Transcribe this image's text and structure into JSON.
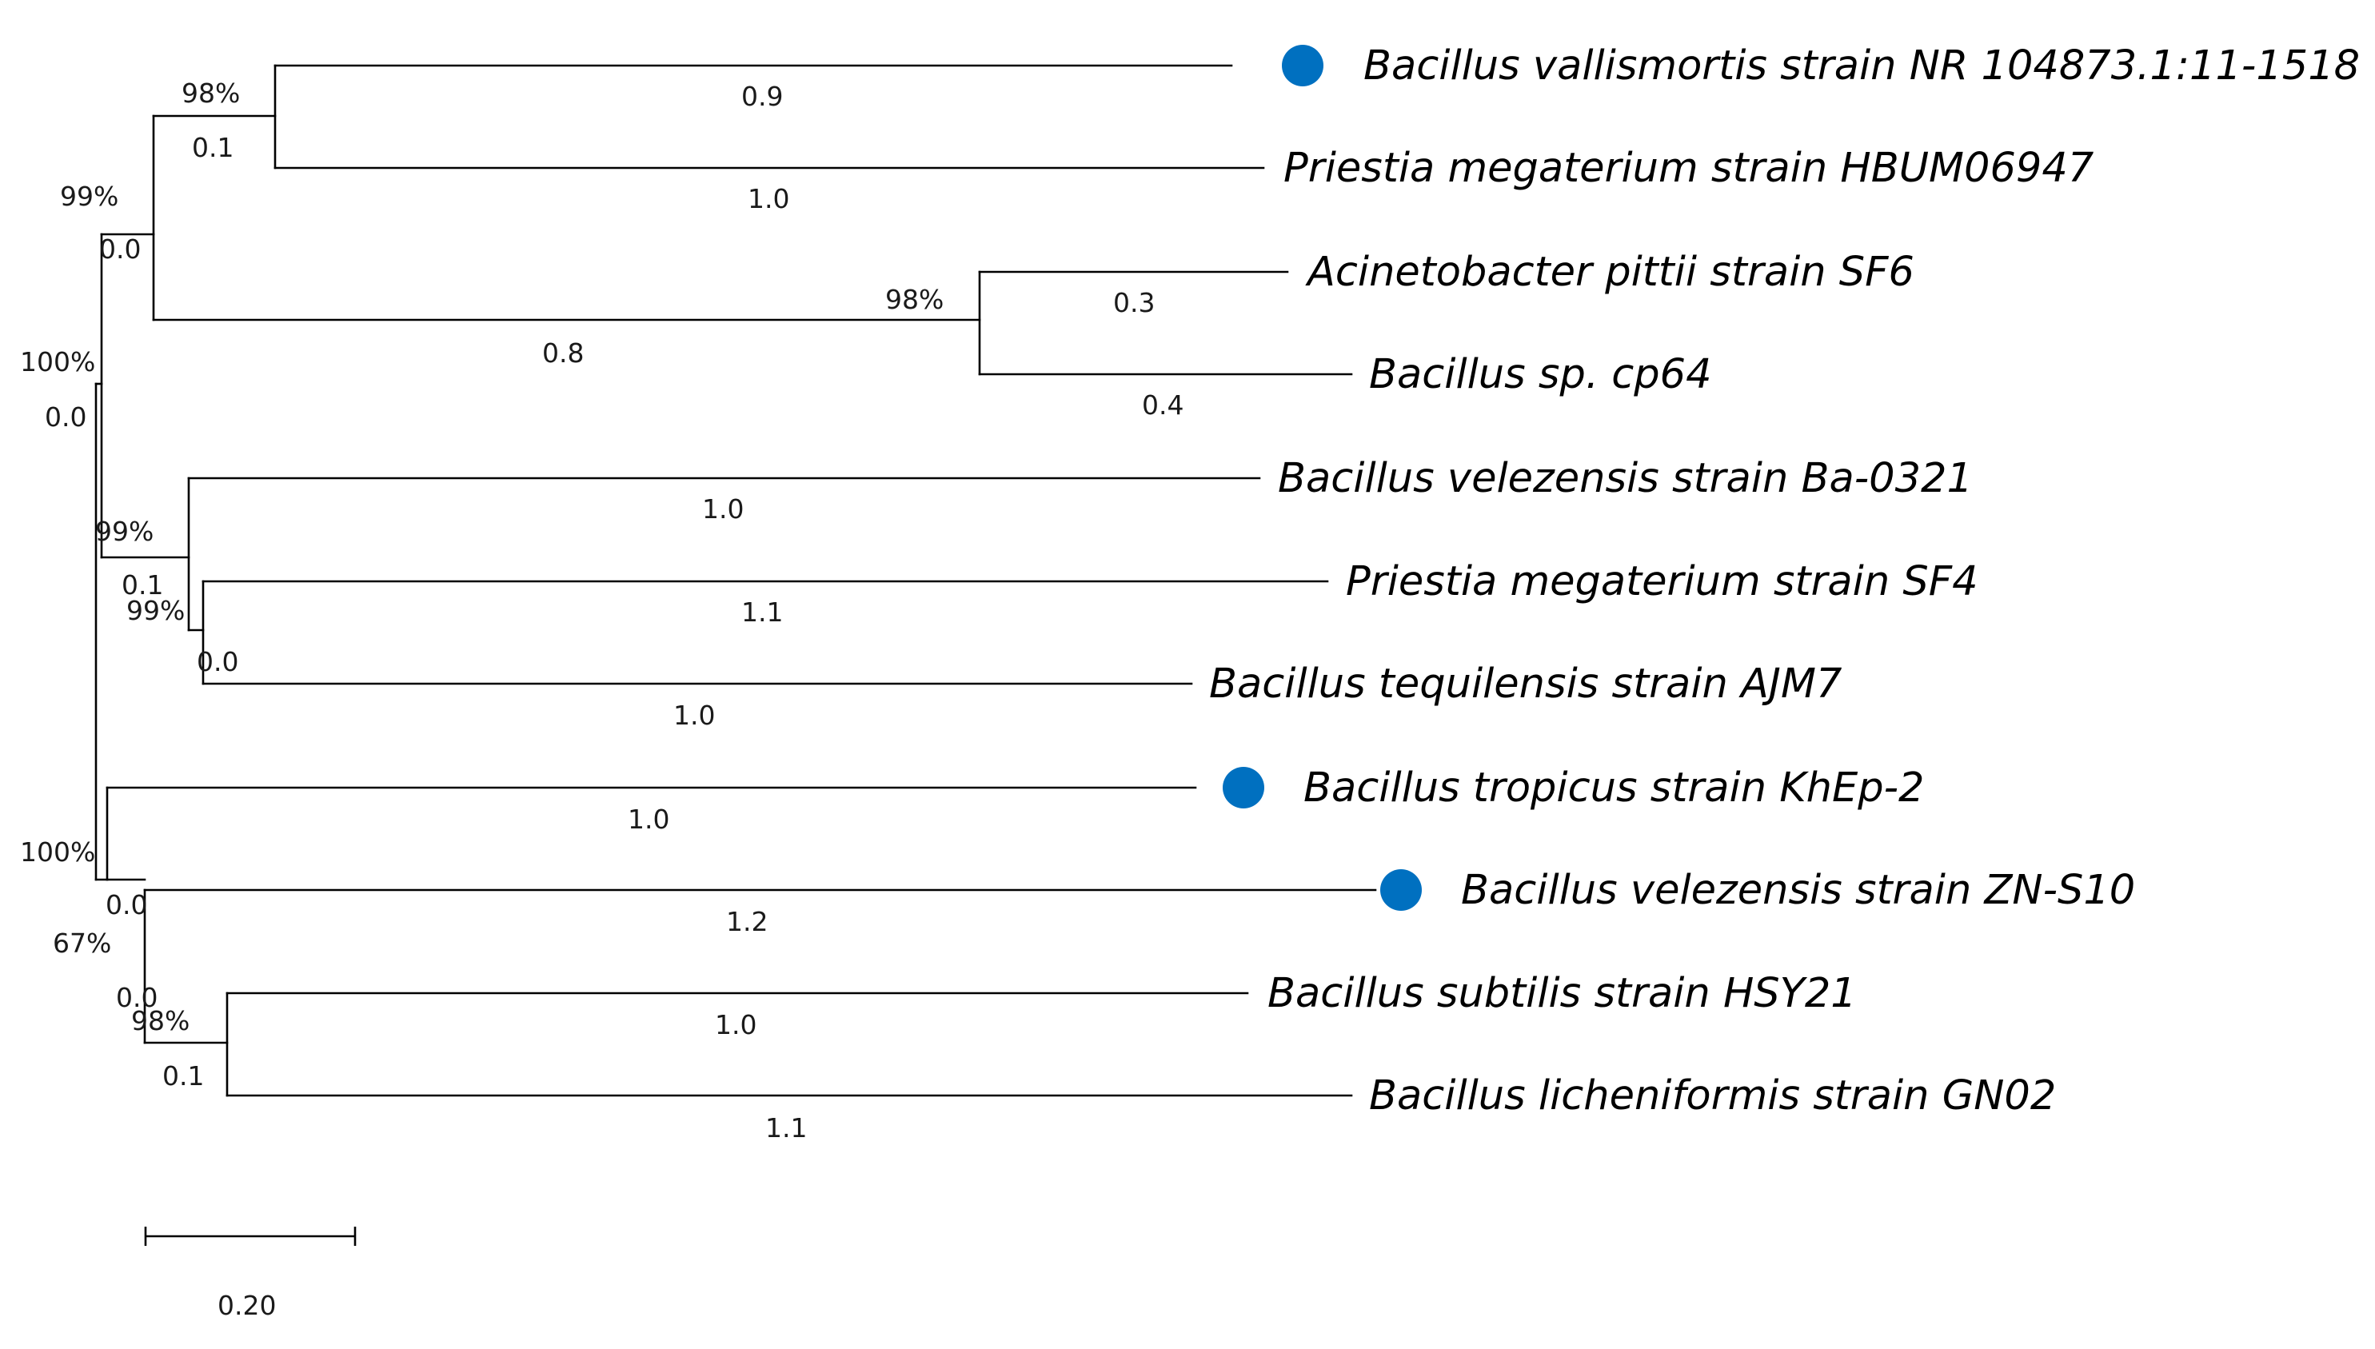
{
  "tree": {
    "marker_color": "#0070C0",
    "taxa": [
      {
        "label": "Bacillus vallismortis strain NR 104873.1:11-1518",
        "marked": true
      },
      {
        "label": "Priestia megaterium strain HBUM06947",
        "marked": false
      },
      {
        "label": "Acinetobacter pittii strain SF6",
        "marked": false
      },
      {
        "label": "Bacillus sp. cp64",
        "marked": false
      },
      {
        "label": "Bacillus velezensis strain Ba-0321",
        "marked": false
      },
      {
        "label": "Priestia megaterium strain SF4",
        "marked": false
      },
      {
        "label": "Bacillus tequilensis strain AJM7",
        "marked": false
      },
      {
        "label": "Bacillus tropicus strain KhEp-2",
        "marked": true
      },
      {
        "label": "Bacillus velezensis strain ZN-S10",
        "marked": true
      },
      {
        "label": "Bacillus subtilis strain HSY21",
        "marked": false
      },
      {
        "label": "Bacillus licheniformis strain GN02",
        "marked": false
      }
    ],
    "branch_lengths": {
      "vallismortis": "0.9",
      "megaterium_hbum": "1.0",
      "pittii": "0.3",
      "cp64": "0.4",
      "acinetobacter_clade": "0.8",
      "vallismortis_clade": "0.1",
      "top_group": "0.0",
      "upper_root": "0.0",
      "ba0321": "1.0",
      "sf4": "1.1",
      "ajm7": "1.0",
      "sf4_ajm7_clade": "0.0",
      "velezensis_group": "0.1",
      "khep2": "1.0",
      "zns10": "1.2",
      "hsy21": "1.0",
      "gn02": "1.1",
      "subtilis_clade": "0.1",
      "zns10_clade": "0.0",
      "lower_group": "0.0"
    },
    "bootstrap": {
      "vallismortis_clade": "98%",
      "acinetobacter_clade": "98%",
      "top_group": "99%",
      "upper_root": "100%",
      "velezensis_group": "99%",
      "sf4_ajm7_clade": "99%",
      "lower_root": "100%",
      "zns10_clade": "67%",
      "subtilis_clade": "98%"
    },
    "scale": {
      "label": "0.20"
    }
  }
}
